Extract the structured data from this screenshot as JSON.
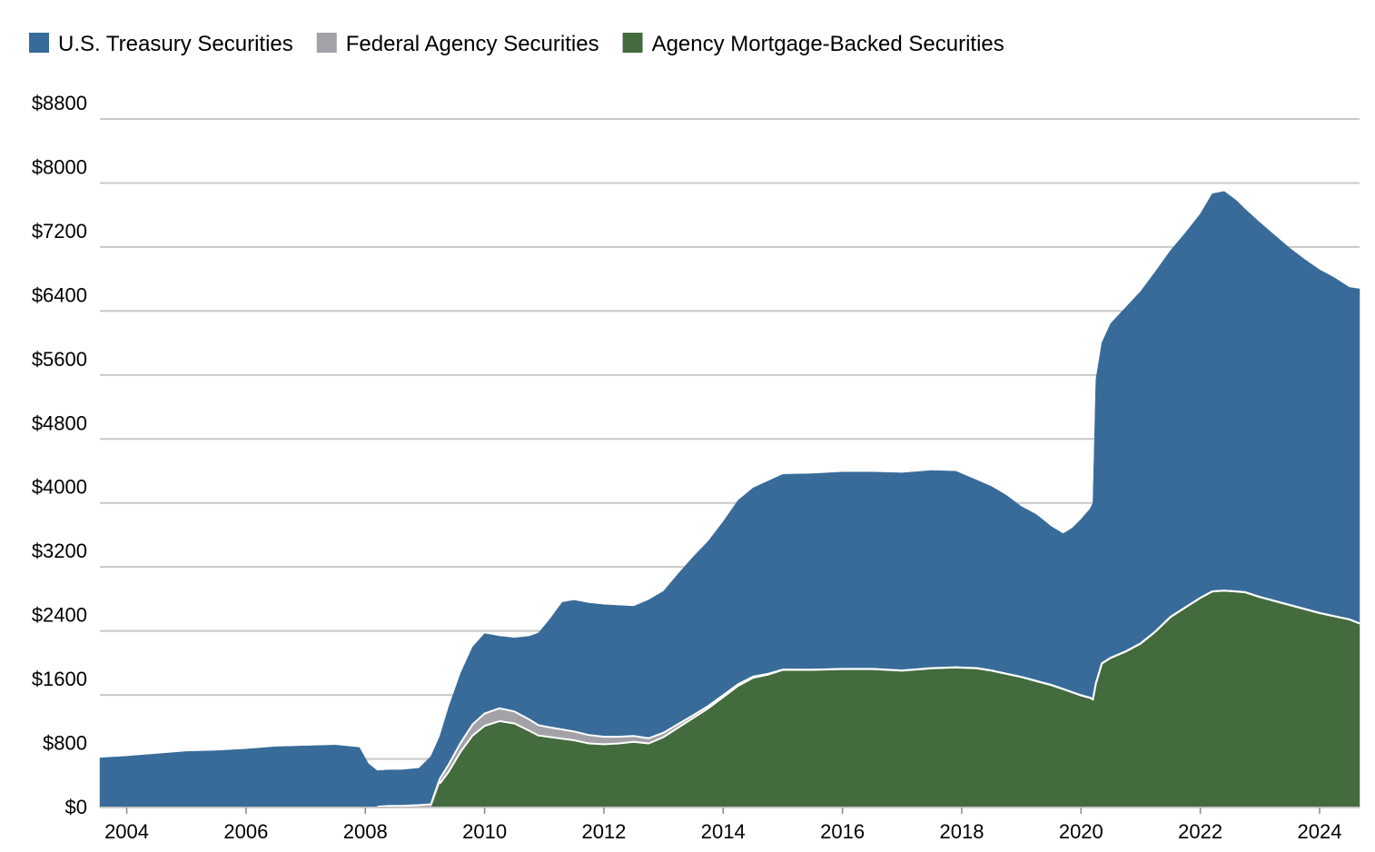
{
  "chart_data": {
    "type": "area",
    "stacked": true,
    "title": "",
    "xlabel": "",
    "ylabel": "",
    "ylim": [
      0,
      8800
    ],
    "xlim": [
      2003.55,
      2024.67
    ],
    "grid": true,
    "legend_position": "top-left",
    "y_ticks": [
      "$0",
      "$800",
      "$1600",
      "$2400",
      "$3200",
      "$4000",
      "$4800",
      "$5600",
      "$6400",
      "$7200",
      "$8000",
      "$8800"
    ],
    "y_tick_values": [
      0,
      800,
      1600,
      2400,
      3200,
      4000,
      4800,
      5600,
      6400,
      7200,
      8000,
      8800
    ],
    "x_ticks": [
      "2004",
      "2006",
      "2008",
      "2010",
      "2012",
      "2014",
      "2016",
      "2018",
      "2020",
      "2022",
      "2024"
    ],
    "x_tick_values": [
      2004,
      2006,
      2008,
      2010,
      2012,
      2014,
      2016,
      2018,
      2020,
      2022,
      2024
    ],
    "x": [
      2003.55,
      2004.0,
      2004.5,
      2005.0,
      2005.5,
      2006.0,
      2006.5,
      2007.0,
      2007.5,
      2007.9,
      2008.05,
      2008.2,
      2008.4,
      2008.6,
      2008.9,
      2009.1,
      2009.25,
      2009.4,
      2009.6,
      2009.8,
      2010.0,
      2010.25,
      2010.5,
      2010.75,
      2010.9,
      2011.1,
      2011.3,
      2011.5,
      2011.75,
      2012.0,
      2012.25,
      2012.5,
      2012.75,
      2013.0,
      2013.25,
      2013.5,
      2013.75,
      2014.0,
      2014.25,
      2014.5,
      2014.75,
      2015.0,
      2015.5,
      2016.0,
      2016.5,
      2017.0,
      2017.5,
      2017.9,
      2018.25,
      2018.5,
      2018.75,
      2019.0,
      2019.25,
      2019.5,
      2019.7,
      2019.85,
      2020.0,
      2020.15,
      2020.2,
      2020.25,
      2020.35,
      2020.5,
      2020.75,
      2021.0,
      2021.25,
      2021.5,
      2021.75,
      2022.0,
      2022.2,
      2022.4,
      2022.6,
      2022.75,
      2023.0,
      2023.25,
      2023.5,
      2023.75,
      2024.0,
      2024.25,
      2024.5,
      2024.67
    ],
    "series": [
      {
        "name": "Agency Mortgage-Backed Securities",
        "color": "#436b3d",
        "values": [
          0,
          0,
          0,
          0,
          0,
          0,
          0,
          0,
          0,
          0,
          0,
          0,
          0,
          0,
          0,
          0,
          300,
          450,
          700,
          900,
          1020,
          1080,
          1050,
          960,
          900,
          880,
          860,
          840,
          800,
          790,
          800,
          820,
          800,
          880,
          1000,
          1120,
          1240,
          1380,
          1520,
          1620,
          1660,
          1720,
          1720,
          1730,
          1730,
          1710,
          1740,
          1750,
          1740,
          1710,
          1670,
          1630,
          1580,
          1530,
          1480,
          1440,
          1400,
          1370,
          1350,
          1550,
          1800,
          1870,
          1950,
          2050,
          2200,
          2380,
          2500,
          2620,
          2700,
          2710,
          2700,
          2690,
          2630,
          2580,
          2530,
          2480,
          2430,
          2390,
          2350,
          2300
        ]
      },
      {
        "name": "Federal Agency Securities",
        "color": "#a2a2a8",
        "values": [
          0,
          0,
          0,
          0,
          0,
          0,
          0,
          0,
          0,
          0,
          0,
          10,
          20,
          20,
          30,
          40,
          60,
          90,
          110,
          140,
          155,
          160,
          150,
          140,
          130,
          120,
          115,
          110,
          105,
          95,
          85,
          75,
          65,
          55,
          45,
          35,
          30,
          25,
          20,
          15,
          10,
          5,
          3,
          3,
          3,
          3,
          3,
          3,
          3,
          3,
          3,
          3,
          3,
          3,
          3,
          3,
          3,
          3,
          3,
          3,
          3,
          3,
          3,
          3,
          3,
          3,
          3,
          2,
          2,
          2,
          2,
          2,
          2,
          2,
          2,
          2,
          2,
          2,
          2,
          2
        ]
      },
      {
        "name": "U.S. Treasury Securities",
        "color": "#386b99",
        "values": [
          620,
          640,
          670,
          700,
          710,
          730,
          760,
          770,
          780,
          750,
          550,
          450,
          450,
          450,
          460,
          600,
          530,
          720,
          870,
          970,
          1000,
          900,
          920,
          1040,
          1150,
          1360,
          1590,
          1640,
          1650,
          1650,
          1640,
          1620,
          1730,
          1770,
          1880,
          1980,
          2060,
          2170,
          2300,
          2360,
          2410,
          2440,
          2450,
          2460,
          2460,
          2470,
          2470,
          2450,
          2350,
          2300,
          2230,
          2130,
          2080,
          1980,
          1940,
          2050,
          2200,
          2360,
          2450,
          3800,
          4010,
          4180,
          4300,
          4400,
          4500,
          4580,
          4680,
          4800,
          4970,
          4990,
          4890,
          4790,
          4680,
          4570,
          4460,
          4370,
          4290,
          4230,
          4150,
          4180
        ]
      }
    ]
  }
}
